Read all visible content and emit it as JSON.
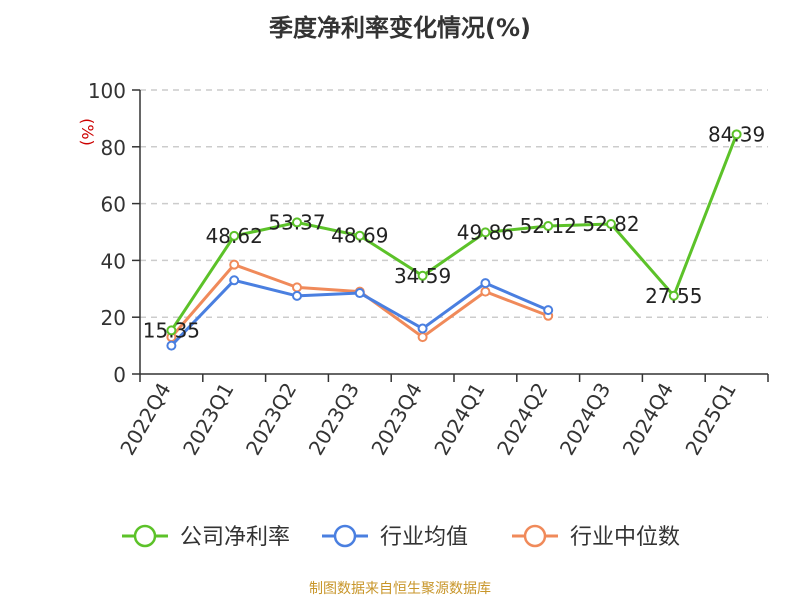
{
  "chart_data": {
    "type": "line",
    "title": "季度净利率变化情况(%)",
    "ylabel": "(%)",
    "xlabel": "",
    "categories": [
      "2022Q4",
      "2023Q1",
      "2023Q2",
      "2023Q3",
      "2023Q4",
      "2024Q1",
      "2024Q2",
      "2024Q3",
      "2024Q4",
      "2025Q1"
    ],
    "ylim": [
      0,
      100
    ],
    "yticks": [
      0,
      20,
      40,
      60,
      80,
      100
    ],
    "grid": true,
    "legend_position": "bottom",
    "series": [
      {
        "name": "公司净利率",
        "color": "#5cc229",
        "values": [
          15.35,
          48.62,
          53.37,
          48.69,
          34.59,
          49.86,
          52.12,
          52.82,
          27.55,
          84.39
        ],
        "labels": [
          "15.35",
          "48.62",
          "53.37",
          "48.69",
          "34.59",
          "49.86",
          "52.12",
          "52.82",
          "27.55",
          "84.39"
        ]
      },
      {
        "name": "行业均值",
        "color": "#4a7fe0",
        "values": [
          10,
          33,
          27.5,
          28.5,
          16,
          32,
          22.5,
          null,
          null,
          null
        ]
      },
      {
        "name": "行业中位数",
        "color": "#f08a5a",
        "values": [
          13,
          38.5,
          30.5,
          29,
          13,
          29,
          20.5,
          null,
          null,
          null
        ]
      }
    ]
  },
  "source_text": "制图数据来自恒生聚源数据库"
}
